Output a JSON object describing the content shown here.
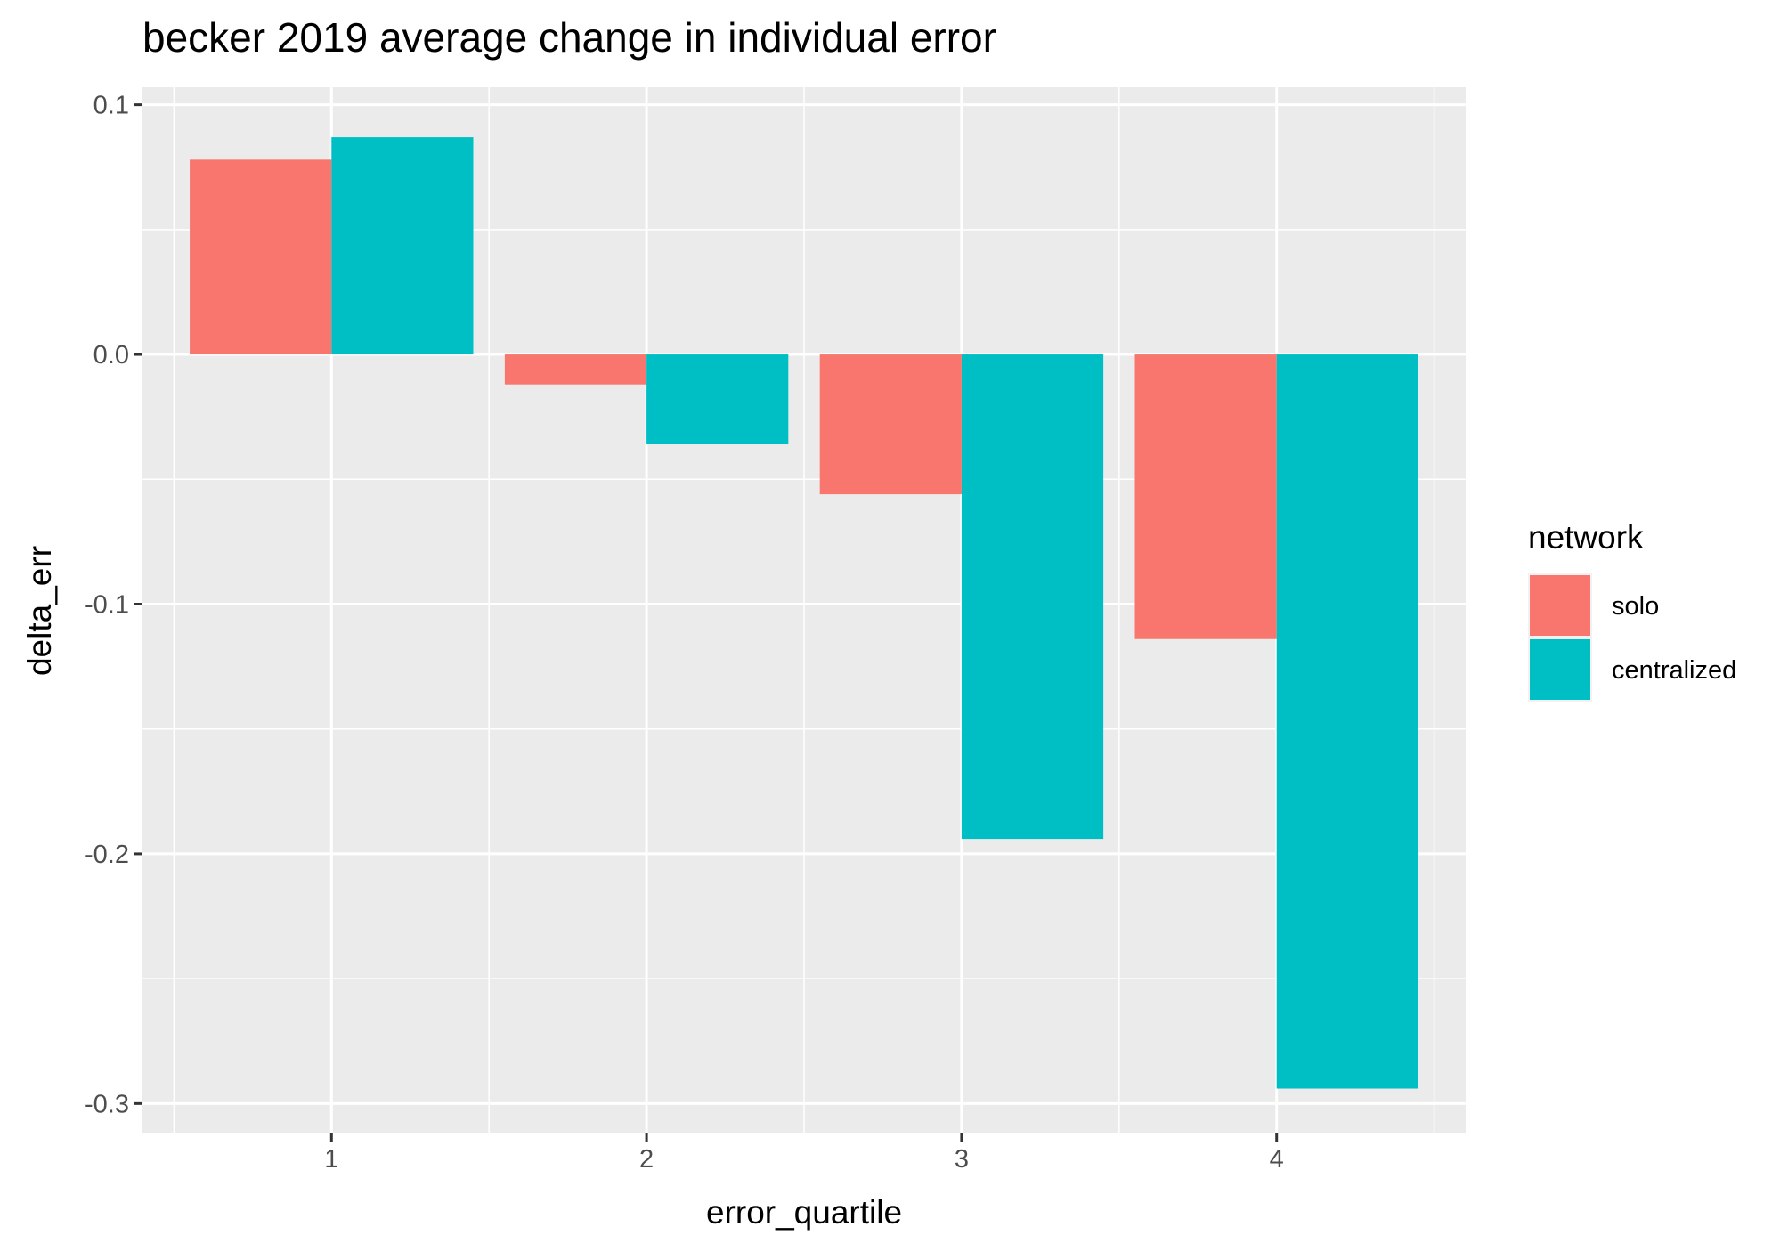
{
  "chart_data": {
    "type": "bar",
    "title": "becker 2019 average change in individual error",
    "xlabel": "error_quartile",
    "ylabel": "delta_err",
    "categories": [
      "1",
      "2",
      "3",
      "4"
    ],
    "series": [
      {
        "name": "solo",
        "color": "#F8766D",
        "values": [
          0.078,
          -0.012,
          -0.056,
          -0.114
        ]
      },
      {
        "name": "centralized",
        "color": "#00BFC4",
        "values": [
          0.087,
          -0.036,
          -0.194,
          -0.294
        ]
      }
    ],
    "ylim": [
      -0.312,
      0.107
    ],
    "yticks": [
      0.1,
      0.0,
      -0.1,
      -0.2,
      -0.3
    ],
    "ytick_labels": [
      "0.1",
      "0.0",
      "-0.1",
      "-0.2",
      "-0.3"
    ],
    "legend": {
      "title": "network",
      "placement": "right"
    },
    "grid": true
  }
}
